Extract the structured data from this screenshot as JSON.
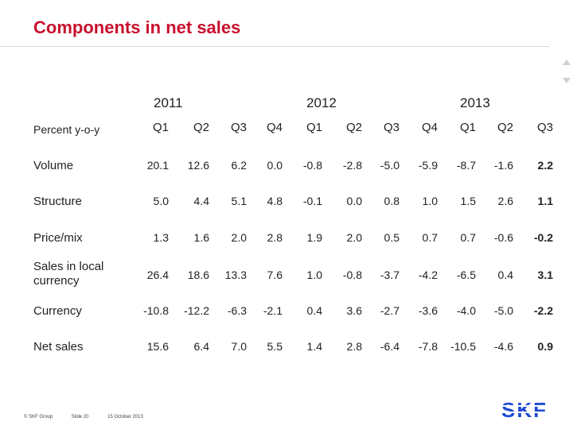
{
  "title": "Components in net sales",
  "years": [
    "2011",
    "2012",
    "2013"
  ],
  "corner_label": "Percent y-o-y",
  "quarters": [
    "Q1",
    "Q2",
    "Q3",
    "Q4",
    "Q1",
    "Q2",
    "Q3",
    "Q4",
    "Q1",
    "Q2",
    "Q3"
  ],
  "rows": [
    {
      "label": "Volume",
      "values": [
        "20.1",
        "12.6",
        "6.2",
        "0.0",
        "-0.8",
        "-2.8",
        "-5.0",
        "-5.9",
        "-8.7",
        "-1.6",
        "2.2"
      ]
    },
    {
      "label": "Structure",
      "values": [
        "5.0",
        "4.4",
        "5.1",
        "4.8",
        "-0.1",
        "0.0",
        "0.8",
        "1.0",
        "1.5",
        "2.6",
        "1.1"
      ]
    },
    {
      "label": "Price/mix",
      "values": [
        "1.3",
        "1.6",
        "2.0",
        "2.8",
        "1.9",
        "2.0",
        "0.5",
        "0.7",
        "0.7",
        "-0.6",
        "-0.2"
      ]
    },
    {
      "label": "Sales in local currency",
      "values": [
        "26.4",
        "18.6",
        "13.3",
        "7.6",
        "1.0",
        "-0.8",
        "-3.7",
        "-4.2",
        "-6.5",
        "0.4",
        "3.1"
      ]
    },
    {
      "label": "Currency",
      "values": [
        "-10.8",
        "-12.2",
        "-6.3",
        "-2.1",
        "0.4",
        "3.6",
        "-2.7",
        "-3.6",
        "-4.0",
        "-5.0",
        "-2.2"
      ]
    },
    {
      "label": "Net sales",
      "values": [
        "15.6",
        "6.4",
        "7.0",
        "5.5",
        "1.4",
        "2.8",
        "-6.4",
        "-7.8",
        "-10.5",
        "-4.6",
        "0.9"
      ]
    }
  ],
  "footer": {
    "company": "© SKF Group",
    "slide": "Slide 20",
    "date": "15 October 2013"
  },
  "logo_text": "SKF",
  "colors": {
    "title": "#c8102e",
    "logo": "#1e4bd2"
  }
}
